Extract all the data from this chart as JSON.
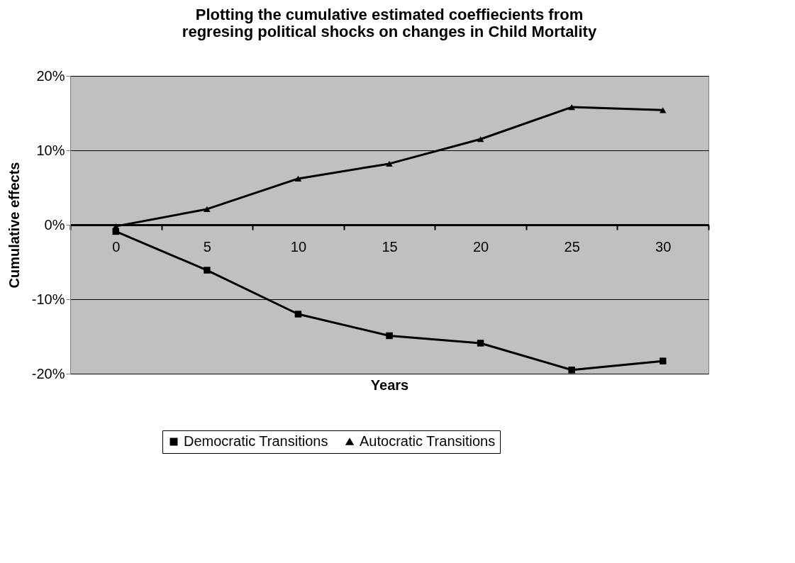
{
  "chart_data": {
    "type": "line",
    "title": "Plotting the cumulative estimated coeffiecients from\nregresing political shocks on changes in Child Mortality",
    "xlabel": "Years",
    "ylabel": "Cumulative effects",
    "categories": [
      "0",
      "5",
      "10",
      "15",
      "20",
      "25",
      "30"
    ],
    "series": [
      {
        "name": "Democratic Transitions",
        "color": "#000000",
        "marker": "square",
        "values": [
          -0.9,
          -6.1,
          -12.0,
          -14.9,
          -15.9,
          -19.5,
          -18.3
        ]
      },
      {
        "name": "Autocratic Transitions",
        "color": "#000000",
        "marker": "triangle",
        "values": [
          -0.2,
          2.1,
          6.2,
          8.2,
          11.5,
          15.8,
          15.4
        ]
      }
    ],
    "ylim": [
      -20,
      20
    ],
    "yticks": [
      {
        "value": -20,
        "label": "-20%"
      },
      {
        "value": -10,
        "label": "-10%"
      },
      {
        "value": 0,
        "label": "0%"
      },
      {
        "value": 10,
        "label": "10%"
      },
      {
        "value": 20,
        "label": "20%"
      }
    ],
    "grid": "y",
    "legend": "bottom",
    "line_style": "solid"
  }
}
